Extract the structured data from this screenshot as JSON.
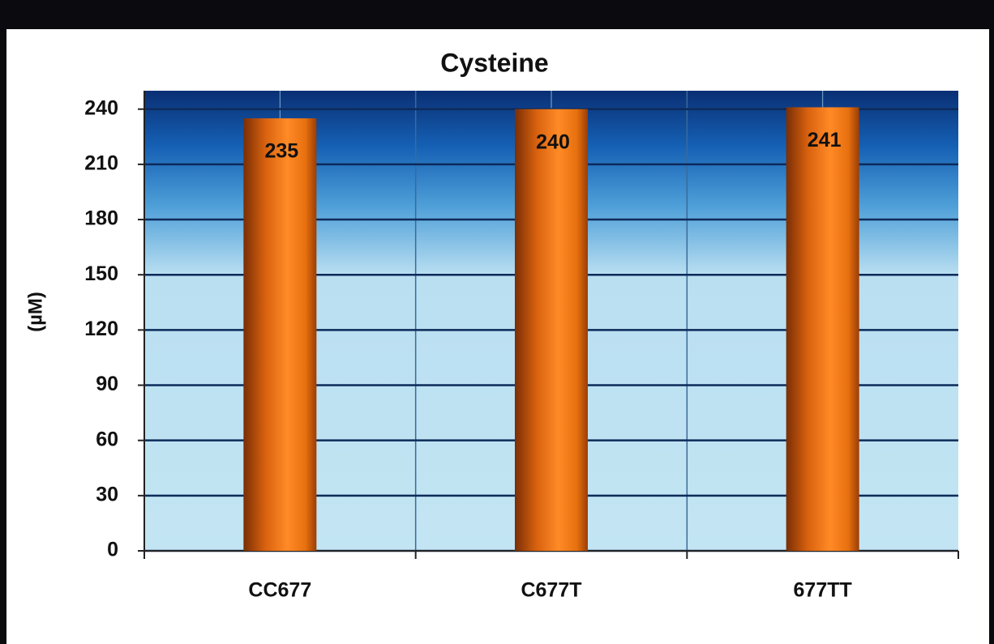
{
  "chart_data": {
    "type": "bar",
    "title": "Cysteine",
    "y_label": "(µM)",
    "categories": [
      "CC677",
      "C677T",
      "677TT"
    ],
    "values": [
      235,
      240,
      241
    ],
    "color": "#f47a1f",
    "ylim": [
      0,
      250
    ],
    "yticks": [
      0,
      30,
      60,
      90,
      120,
      150,
      180,
      210,
      240
    ],
    "grid": true
  }
}
